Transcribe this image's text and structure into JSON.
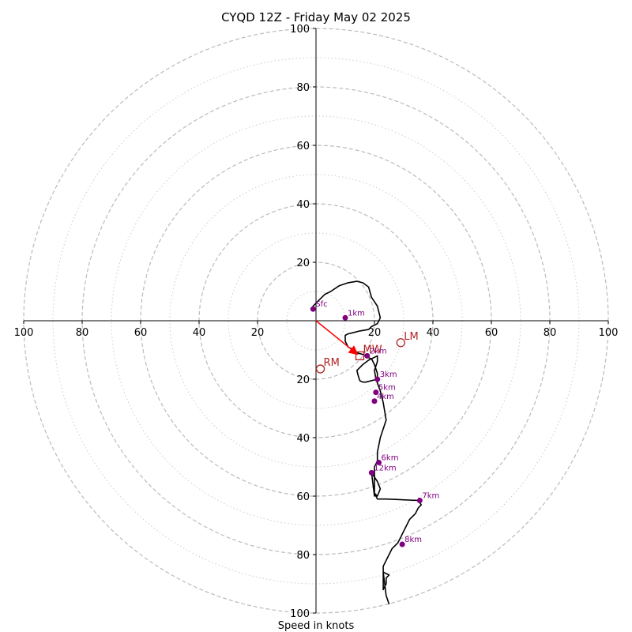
{
  "chart_data": {
    "type": "scatter",
    "subtype": "hodograph",
    "title": "CYQD 12Z - Friday May 02 2025",
    "xlabel": "Speed in knots",
    "ylabel": "",
    "xlim": [
      -100,
      100
    ],
    "ylim": [
      -100,
      100
    ],
    "ring_major_step": 20,
    "ring_minor_step": 10,
    "x_tick_labels": [
      "100",
      "80",
      "60",
      "40",
      "20",
      "20",
      "40",
      "60",
      "80",
      "100"
    ],
    "x_tick_values": [
      -100,
      -80,
      -60,
      -40,
      -20,
      20,
      40,
      60,
      80,
      100
    ],
    "y_tick_labels": [
      "100",
      "80",
      "60",
      "40",
      "20",
      "20",
      "40",
      "60",
      "80",
      "100"
    ],
    "y_tick_values": [
      100,
      80,
      60,
      40,
      20,
      -20,
      -40,
      -60,
      -80,
      -100
    ],
    "colors": {
      "trace": "#000000",
      "markers": "#800080",
      "motion": "#b22222",
      "mean_wind_arrow": "#ff0000",
      "rings_major": "#bbbbbb",
      "rings_minor": "#cccccc"
    },
    "trace": {
      "u": [
        -1,
        -1,
        1,
        3,
        5,
        8,
        11,
        14,
        16,
        18,
        19,
        21,
        22,
        21,
        19,
        18,
        15,
        13,
        11,
        10,
        10,
        11,
        13,
        14,
        16,
        17,
        17.5,
        19,
        20,
        21,
        21,
        21,
        17,
        16,
        15,
        14.5,
        14,
        16,
        18,
        20,
        21,
        21,
        20,
        20.5,
        22,
        23,
        24,
        22,
        21,
        21,
        20,
        20,
        20,
        20,
        19,
        21,
        22,
        21,
        20,
        21,
        24,
        35,
        36,
        35,
        34,
        32,
        31,
        30,
        29,
        28,
        26,
        24,
        23,
        23,
        23,
        24,
        24,
        25,
        23,
        24,
        25
      ],
      "v": [
        4,
        5,
        7,
        9,
        10,
        12,
        13,
        13.5,
        13,
        11.5,
        8,
        5,
        1,
        -1,
        -2,
        -3,
        -3.5,
        -4,
        -4.5,
        -5,
        -7,
        -9,
        -10,
        -11,
        -11.5,
        -12,
        -12.5,
        -13,
        -15,
        -18,
        -19,
        -20,
        -21,
        -21,
        -20.5,
        -19,
        -17,
        -15,
        -13.5,
        -12.5,
        -12,
        -14,
        -17,
        -20,
        -24,
        -28,
        -34,
        -40,
        -45,
        -48,
        -50,
        -52,
        -58,
        -60,
        -52,
        -55,
        -57.5,
        -60,
        -59,
        -61,
        -61,
        -61.5,
        -63,
        -64,
        -66,
        -68,
        -70,
        -72,
        -74,
        -76,
        -78,
        -82,
        -84,
        -88,
        -92,
        -90,
        -88,
        -87,
        -86,
        -94,
        -97
      ]
    },
    "height_markers": [
      {
        "label": "Sfc",
        "u": -1,
        "v": 4
      },
      {
        "label": "1km",
        "u": 10,
        "v": 1
      },
      {
        "label": "2km",
        "u": 17.5,
        "v": -12
      },
      {
        "label": "3km",
        "u": 21,
        "v": -20
      },
      {
        "label": "4km",
        "u": 20,
        "v": -27.5
      },
      {
        "label": "5km",
        "u": 20.5,
        "v": -24.5
      },
      {
        "label": "6km",
        "u": 21.5,
        "v": -48.5
      },
      {
        "label": "12km",
        "u": 19,
        "v": -52
      },
      {
        "label": "7km",
        "u": 35.5,
        "v": -61.5
      },
      {
        "label": "8km",
        "u": 29.5,
        "v": -76.5
      }
    ],
    "storm_motion": [
      {
        "label": "LM",
        "u": 29,
        "v": -7.5,
        "marker": "circle"
      },
      {
        "label": "RM",
        "u": 1.5,
        "v": -16.5,
        "marker": "circle"
      },
      {
        "label": "MW",
        "u": 15,
        "v": -12,
        "marker": "square"
      }
    ],
    "mean_wind_vector": {
      "u": 15,
      "v": -12
    }
  }
}
